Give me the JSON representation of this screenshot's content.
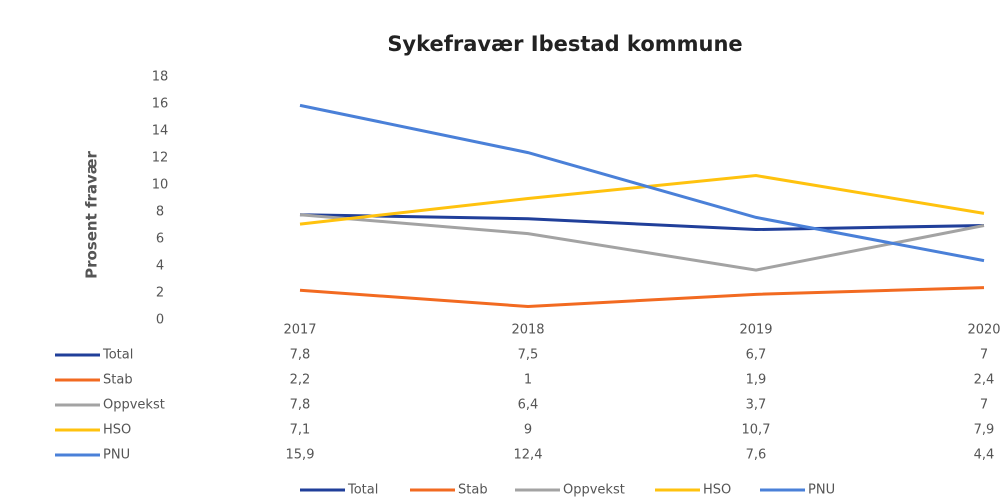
{
  "chart_data": {
    "type": "line",
    "title": "Sykefravær Ibestad kommune",
    "y_label": "Prosent fravær",
    "categories": [
      "2017",
      "2018",
      "2019",
      "2020"
    ],
    "ylim": [
      0,
      18
    ],
    "yticks": [
      0,
      2,
      4,
      6,
      8,
      10,
      12,
      14,
      16,
      18
    ],
    "grid": false,
    "legend": "bottom",
    "series": [
      {
        "name": "Total",
        "color": "#203f9a",
        "values": [
          7.8,
          7.5,
          6.7,
          7
        ],
        "value_labels": [
          "7,8",
          "7,5",
          "6,7",
          "7"
        ]
      },
      {
        "name": "Stab",
        "color": "#f26a21",
        "values": [
          2.2,
          1,
          1.9,
          2.4
        ],
        "value_labels": [
          "2,2",
          "1",
          "1,9",
          "2,4"
        ]
      },
      {
        "name": "Oppvekst",
        "color": "#a3a3a3",
        "values": [
          7.8,
          6.4,
          3.7,
          7
        ],
        "value_labels": [
          "7,8",
          "6,4",
          "3,7",
          "7"
        ]
      },
      {
        "name": "HSO",
        "color": "#ffc20e",
        "values": [
          7.1,
          9,
          10.7,
          7.9
        ],
        "value_labels": [
          "7,1",
          "9",
          "10,7",
          "7,9"
        ]
      },
      {
        "name": "PNU",
        "color": "#4a80d8",
        "values": [
          15.9,
          12.4,
          7.6,
          4.4
        ],
        "value_labels": [
          "15,9",
          "12,4",
          "7,6",
          "4,4"
        ]
      }
    ]
  }
}
